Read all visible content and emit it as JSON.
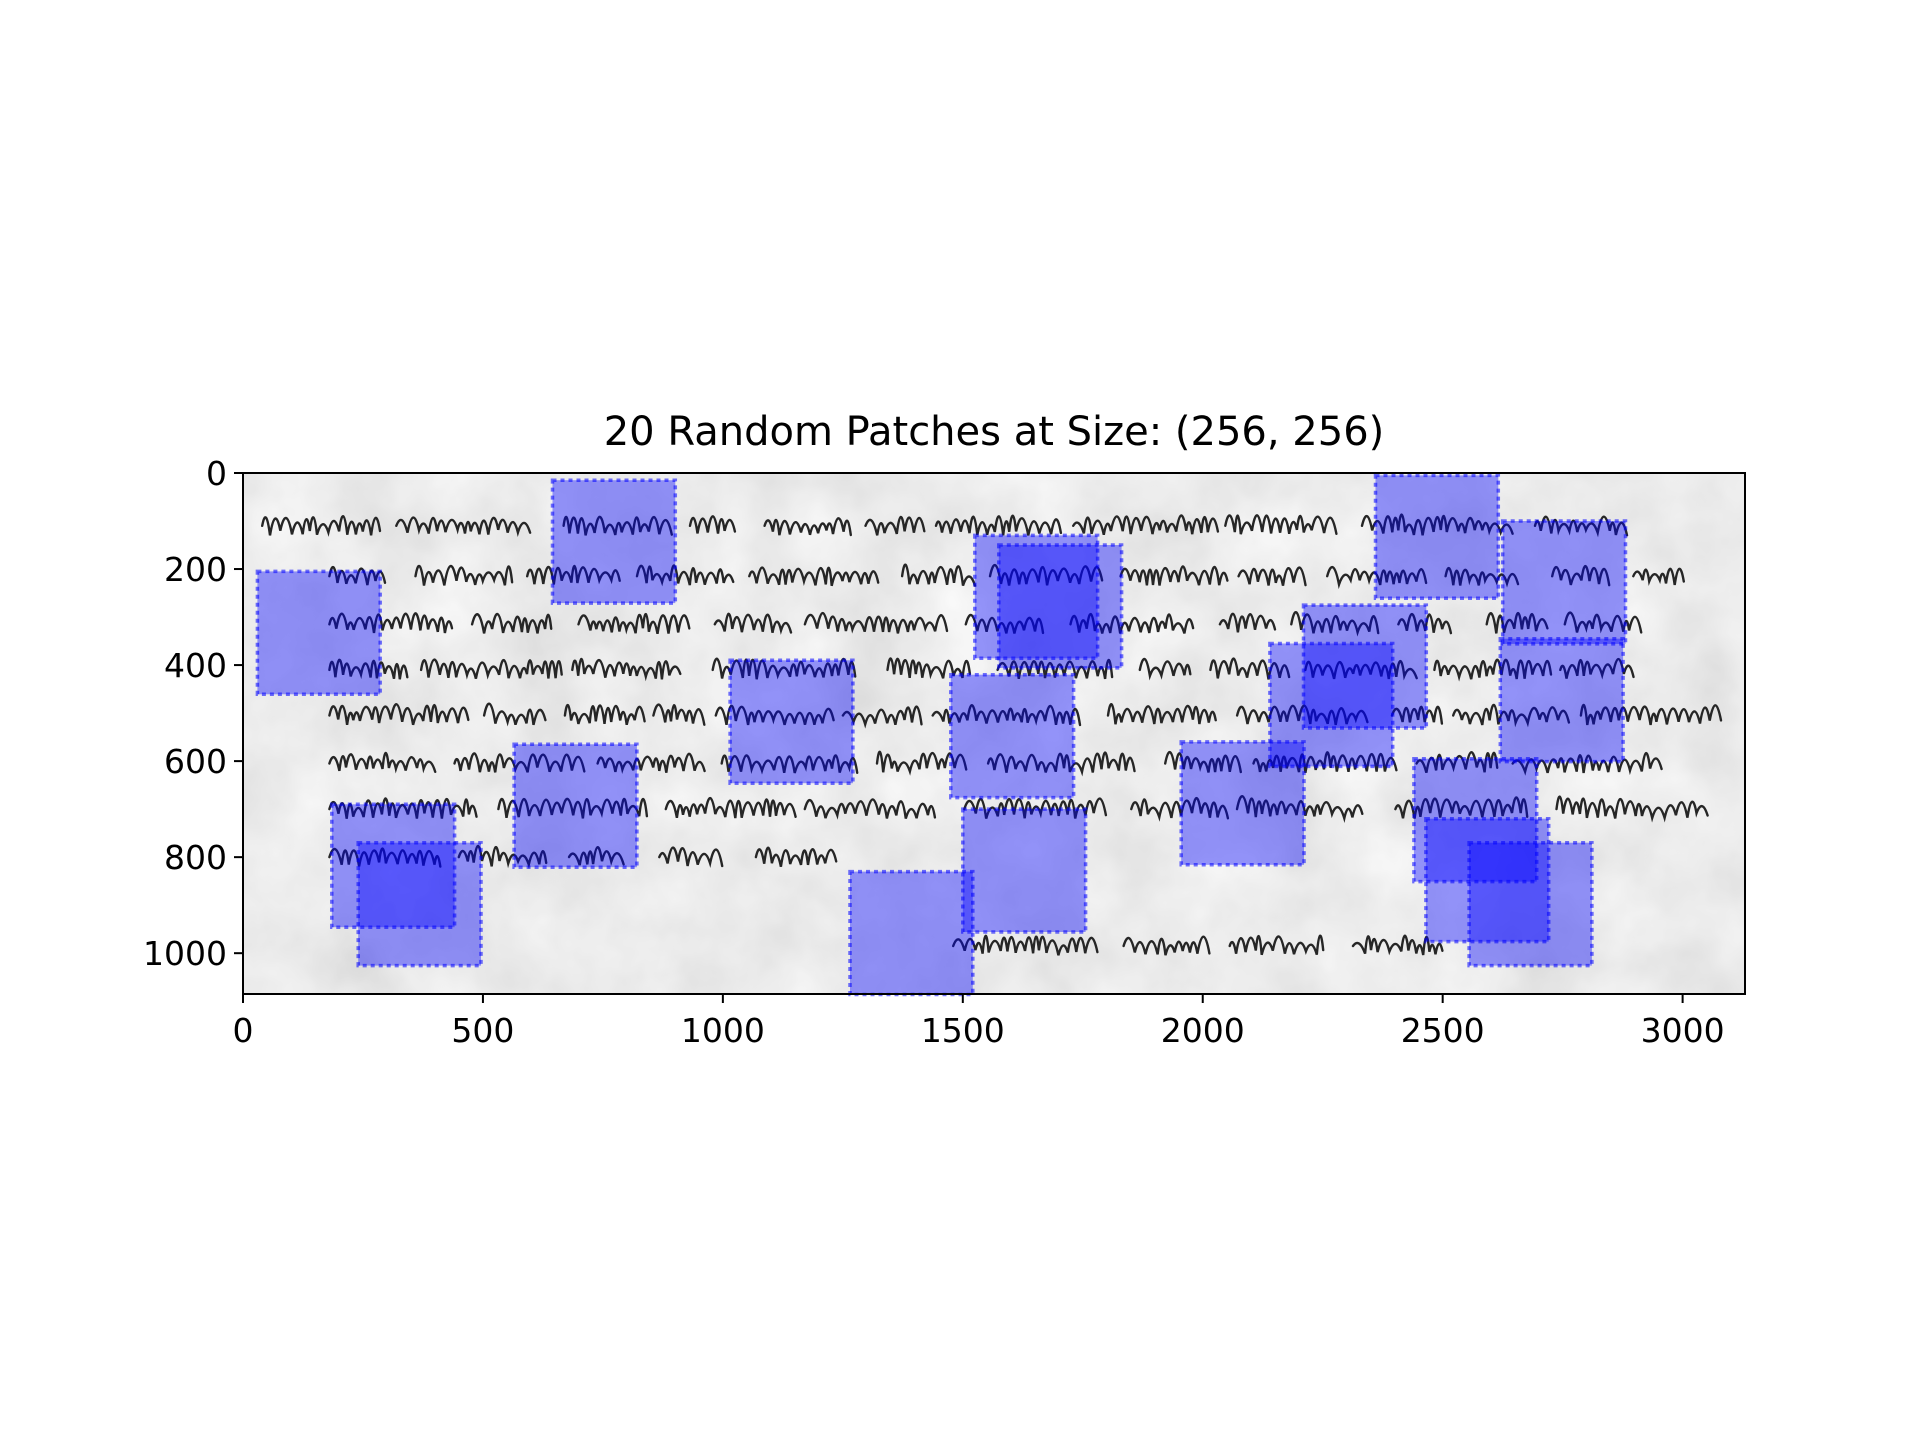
{
  "chart_data": {
    "type": "heatmap",
    "title": "20 Random Patches at Size: (256, 256)",
    "xlabel": "",
    "ylabel": "",
    "image_extent": {
      "width": 3130,
      "height": 1085
    },
    "xlim": [
      0,
      3130
    ],
    "ylim": [
      1085,
      0
    ],
    "y_axis_inverted": true,
    "x_ticks": [
      0,
      500,
      1000,
      1500,
      2000,
      2500,
      3000
    ],
    "y_ticks": [
      0,
      200,
      400,
      600,
      800,
      1000
    ],
    "x_tick_labels": [
      "0",
      "500",
      "1000",
      "1500",
      "2000",
      "2500",
      "3000"
    ],
    "y_tick_labels": [
      "0",
      "200",
      "400",
      "600",
      "800",
      "1000"
    ],
    "patch_size": [
      256,
      256
    ],
    "patch_color": "#0000ff",
    "patch_opacity": 0.4,
    "grid": false,
    "patches": [
      {
        "x": 30,
        "y": 205
      },
      {
        "x": 645,
        "y": 15
      },
      {
        "x": 1525,
        "y": 130
      },
      {
        "x": 1575,
        "y": 150
      },
      {
        "x": 2360,
        "y": 5
      },
      {
        "x": 2625,
        "y": 100
      },
      {
        "x": 2210,
        "y": 275
      },
      {
        "x": 2140,
        "y": 355
      },
      {
        "x": 2620,
        "y": 345
      },
      {
        "x": 1015,
        "y": 390
      },
      {
        "x": 1475,
        "y": 420
      },
      {
        "x": 565,
        "y": 565
      },
      {
        "x": 1955,
        "y": 560
      },
      {
        "x": 185,
        "y": 690
      },
      {
        "x": 240,
        "y": 770
      },
      {
        "x": 1500,
        "y": 700
      },
      {
        "x": 1265,
        "y": 830
      },
      {
        "x": 2440,
        "y": 595
      },
      {
        "x": 2465,
        "y": 720
      },
      {
        "x": 2555,
        "y": 770
      }
    ]
  }
}
